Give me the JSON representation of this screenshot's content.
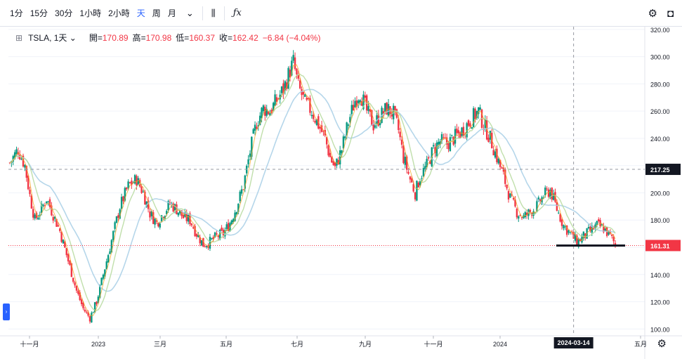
{
  "toolbar": {
    "timeframes": [
      "1分",
      "15分",
      "30分",
      "1小時",
      "2小時",
      "天",
      "周",
      "月"
    ],
    "active_timeframe": "天",
    "icons": [
      "chevron-down-icon",
      "candles-icon",
      "fx-icon",
      "gear-icon",
      "camera-icon"
    ]
  },
  "legend": {
    "symbol": "TSLA, 1天",
    "open_label": "開",
    "open": "170.89",
    "high_label": "高",
    "high": "170.98",
    "low_label": "低",
    "low": "160.37",
    "close_label": "收",
    "close": "162.42",
    "change": "−6.84 (−4.04%)"
  },
  "colors": {
    "up": "#089981",
    "down": "#f23645",
    "ma_fast": "#f5a623",
    "ma_mid": "#b5d99c",
    "ma_slow": "#a8cfe6",
    "accent": "#2962ff"
  },
  "chart_data": {
    "type": "candlestick",
    "y_ticks": [
      "320.00",
      "300.00",
      "280.00",
      "260.00",
      "240.00",
      "220.00",
      "200.00",
      "180.00",
      "160.00",
      "140.00",
      "120.00",
      "100.00"
    ],
    "ylim": [
      95,
      322
    ],
    "x_ticks": [
      "十一月",
      "2023",
      "三月",
      "五月",
      "七月",
      "九月",
      "十一月",
      "2024",
      "五月"
    ],
    "crosshair": {
      "date": "2024-03-14",
      "price_label": "217.25",
      "price": 217.25
    },
    "last_price": {
      "label": "161.31",
      "price": 161.31
    },
    "price_path": [
      {
        "d": 0,
        "p": 222
      },
      {
        "d": 10,
        "p": 232
      },
      {
        "d": 18,
        "p": 220
      },
      {
        "d": 24,
        "p": 198
      },
      {
        "d": 30,
        "p": 180
      },
      {
        "d": 38,
        "p": 188
      },
      {
        "d": 44,
        "p": 196
      },
      {
        "d": 52,
        "p": 184
      },
      {
        "d": 60,
        "p": 172
      },
      {
        "d": 70,
        "p": 150
      },
      {
        "d": 80,
        "p": 128
      },
      {
        "d": 88,
        "p": 115
      },
      {
        "d": 96,
        "p": 108
      },
      {
        "d": 104,
        "p": 120
      },
      {
        "d": 112,
        "p": 140
      },
      {
        "d": 122,
        "p": 165
      },
      {
        "d": 132,
        "p": 190
      },
      {
        "d": 142,
        "p": 205
      },
      {
        "d": 152,
        "p": 210
      },
      {
        "d": 160,
        "p": 200
      },
      {
        "d": 168,
        "p": 185
      },
      {
        "d": 176,
        "p": 178
      },
      {
        "d": 184,
        "p": 185
      },
      {
        "d": 192,
        "p": 192
      },
      {
        "d": 200,
        "p": 188
      },
      {
        "d": 208,
        "p": 182
      },
      {
        "d": 216,
        "p": 180
      },
      {
        "d": 224,
        "p": 170
      },
      {
        "d": 232,
        "p": 162
      },
      {
        "d": 240,
        "p": 164
      },
      {
        "d": 248,
        "p": 168
      },
      {
        "d": 256,
        "p": 170
      },
      {
        "d": 264,
        "p": 178
      },
      {
        "d": 272,
        "p": 190
      },
      {
        "d": 280,
        "p": 205
      },
      {
        "d": 288,
        "p": 230
      },
      {
        "d": 296,
        "p": 252
      },
      {
        "d": 304,
        "p": 262
      },
      {
        "d": 312,
        "p": 260
      },
      {
        "d": 320,
        "p": 268
      },
      {
        "d": 328,
        "p": 276
      },
      {
        "d": 336,
        "p": 290
      },
      {
        "d": 340,
        "p": 296
      },
      {
        "d": 346,
        "p": 278
      },
      {
        "d": 354,
        "p": 266
      },
      {
        "d": 362,
        "p": 260
      },
      {
        "d": 370,
        "p": 250
      },
      {
        "d": 378,
        "p": 240
      },
      {
        "d": 384,
        "p": 226
      },
      {
        "d": 390,
        "p": 218
      },
      {
        "d": 398,
        "p": 232
      },
      {
        "d": 406,
        "p": 252
      },
      {
        "d": 414,
        "p": 268
      },
      {
        "d": 420,
        "p": 274
      },
      {
        "d": 428,
        "p": 260
      },
      {
        "d": 436,
        "p": 250
      },
      {
        "d": 444,
        "p": 256
      },
      {
        "d": 452,
        "p": 262
      },
      {
        "d": 460,
        "p": 258
      },
      {
        "d": 466,
        "p": 246
      },
      {
        "d": 472,
        "p": 226
      },
      {
        "d": 480,
        "p": 210
      },
      {
        "d": 486,
        "p": 200
      },
      {
        "d": 492,
        "p": 212
      },
      {
        "d": 500,
        "p": 220
      },
      {
        "d": 508,
        "p": 232
      },
      {
        "d": 516,
        "p": 238
      },
      {
        "d": 524,
        "p": 236
      },
      {
        "d": 532,
        "p": 240
      },
      {
        "d": 540,
        "p": 244
      },
      {
        "d": 548,
        "p": 250
      },
      {
        "d": 556,
        "p": 256
      },
      {
        "d": 562,
        "p": 260
      },
      {
        "d": 568,
        "p": 250
      },
      {
        "d": 576,
        "p": 240
      },
      {
        "d": 584,
        "p": 226
      },
      {
        "d": 592,
        "p": 212
      },
      {
        "d": 600,
        "p": 196
      },
      {
        "d": 608,
        "p": 186
      },
      {
        "d": 616,
        "p": 182
      },
      {
        "d": 624,
        "p": 186
      },
      {
        "d": 632,
        "p": 190
      },
      {
        "d": 640,
        "p": 198
      },
      {
        "d": 648,
        "p": 202
      },
      {
        "d": 656,
        "p": 188
      },
      {
        "d": 664,
        "p": 176
      },
      {
        "d": 672,
        "p": 170
      },
      {
        "d": 680,
        "p": 164
      },
      {
        "d": 688,
        "p": 168
      },
      {
        "d": 696,
        "p": 172
      },
      {
        "d": 704,
        "p": 176
      },
      {
        "d": 712,
        "p": 174
      },
      {
        "d": 720,
        "p": 168
      },
      {
        "d": 726,
        "p": 162
      }
    ]
  }
}
